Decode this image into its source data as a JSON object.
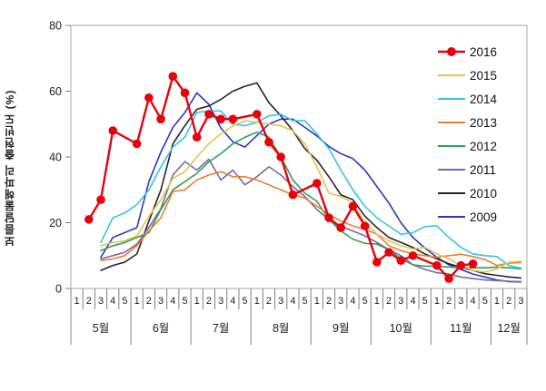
{
  "y_axis_label": "보름달물해파리 출현빈도 (%)",
  "chart_data": {
    "type": "line",
    "title": "",
    "ylabel": "보름달물해파리 출현빈도 (%)",
    "xlabel": "",
    "ylim": [
      0,
      80
    ],
    "yticks": [
      0,
      20,
      40,
      60,
      80
    ],
    "grid": false,
    "legend_position": "top-right-inside",
    "months": [
      {
        "label": "5월",
        "weeks": [
          "1",
          "2",
          "3",
          "4",
          "5"
        ]
      },
      {
        "label": "6월",
        "weeks": [
          "1",
          "2",
          "3",
          "4",
          "5"
        ]
      },
      {
        "label": "7월",
        "weeks": [
          "1",
          "2",
          "3",
          "4",
          "5"
        ]
      },
      {
        "label": "8월",
        "weeks": [
          "1",
          "2",
          "3",
          "4",
          "5"
        ]
      },
      {
        "label": "9월",
        "weeks": [
          "1",
          "2",
          "3",
          "4",
          "5"
        ]
      },
      {
        "label": "10월",
        "weeks": [
          "1",
          "2",
          "3",
          "4",
          "5"
        ]
      },
      {
        "label": "11월",
        "weeks": [
          "1",
          "2",
          "3",
          "4",
          "5"
        ]
      },
      {
        "label": "12월",
        "weeks": [
          "1",
          "2",
          "3"
        ]
      }
    ],
    "series": [
      {
        "name": "2016",
        "color": "#e8000b",
        "marker": "circle",
        "line_width": 2.4,
        "values": [
          null,
          21,
          27,
          48,
          null,
          44,
          58,
          51.5,
          64.5,
          59.5,
          46,
          53,
          51.5,
          51.5,
          null,
          53,
          44.5,
          40,
          28.5,
          null,
          32,
          21.5,
          18.5,
          25,
          19,
          8,
          11,
          8.5,
          10,
          null,
          7,
          3,
          7,
          7.5,
          null,
          null,
          null,
          null
        ]
      },
      {
        "name": "2015",
        "color": "#e7c24d",
        "marker": "none",
        "line_width": 1.6,
        "values": [
          null,
          null,
          13,
          14,
          14.5,
          16,
          22,
          27,
          33.5,
          35.5,
          40,
          44,
          47,
          49.5,
          51,
          50.5,
          50,
          49.5,
          48,
          44,
          37,
          29,
          28,
          26,
          20,
          16.5,
          14.5,
          13,
          12,
          12.5,
          10.5,
          9,
          7,
          5.5,
          5,
          6,
          8,
          8.3
        ]
      },
      {
        "name": "2014",
        "color": "#35c4e3",
        "marker": "none",
        "line_width": 1.6,
        "values": [
          null,
          null,
          14,
          21.5,
          23,
          25.5,
          30,
          37,
          43,
          46,
          53.5,
          54,
          54,
          50,
          49.5,
          50.5,
          52.5,
          53,
          51,
          51,
          47,
          42.5,
          36,
          30,
          25,
          21.5,
          19,
          16.5,
          17,
          18.8,
          19,
          15.5,
          12.5,
          10.5,
          10,
          9.7,
          7,
          6.2
        ]
      },
      {
        "name": "2013",
        "color": "#ed7d31",
        "marker": "none",
        "line_width": 1.6,
        "values": [
          null,
          null,
          8.5,
          9,
          10,
          13,
          17.5,
          21.5,
          29.5,
          30,
          33,
          34.5,
          35.5,
          34,
          34,
          33,
          31.5,
          30,
          28.5,
          27.5,
          25,
          22.5,
          20.5,
          19,
          18,
          16.5,
          13,
          11.5,
          10.5,
          10,
          9.5,
          10,
          10.4,
          9.7,
          8.8,
          7,
          7.7,
          7.9
        ]
      },
      {
        "name": "2012",
        "color": "#2ca05a",
        "marker": "none",
        "line_width": 1.6,
        "values": [
          null,
          null,
          11.5,
          13,
          14,
          15.5,
          17,
          24,
          30,
          32.5,
          35,
          38.5,
          41,
          44,
          46,
          47.5,
          46,
          40,
          33,
          29,
          26.5,
          21,
          17.5,
          15,
          13.7,
          13.5,
          11.8,
          9,
          7.2,
          6.8,
          6.8,
          6.5,
          6.3,
          6.3,
          6.3,
          6.5,
          6.3,
          6
        ]
      },
      {
        "name": "2011",
        "color": "#8064a2",
        "marker": "none",
        "line_width": 1.6,
        "values": [
          null,
          null,
          9,
          10,
          11,
          13.5,
          18.6,
          24.3,
          34.5,
          38.6,
          36,
          39.3,
          33,
          36,
          31.5,
          34,
          37,
          34.5,
          31,
          28,
          24,
          21,
          19,
          17.5,
          16,
          14,
          11.8,
          10,
          7.2,
          5.8,
          4.8,
          4.4,
          3.5,
          3,
          2.6,
          2.4,
          2.2,
          2.1
        ]
      },
      {
        "name": "2010",
        "color": "#262626",
        "marker": "none",
        "line_width": 1.6,
        "values": [
          null,
          null,
          5.5,
          7,
          8,
          10.5,
          20.5,
          30,
          44,
          49.5,
          54.5,
          55.5,
          57.5,
          60,
          61.5,
          62.5,
          56.5,
          52.5,
          48,
          42.5,
          39,
          34,
          28.5,
          27,
          22,
          18.5,
          15.5,
          14,
          12.5,
          10.5,
          9,
          7.5,
          6.5,
          5.5,
          4.5,
          4,
          3.5,
          3.2
        ]
      },
      {
        "name": "2009",
        "color": "#2b35cc",
        "marker": "none",
        "line_width": 1.6,
        "values": [
          null,
          null,
          9.5,
          15.5,
          17,
          18.5,
          32.5,
          41.5,
          49,
          53.5,
          59.5,
          56,
          48.8,
          44.6,
          43,
          46.5,
          50,
          51.5,
          51.5,
          49,
          46.4,
          43.2,
          41,
          39.5,
          36,
          31,
          26,
          20,
          15.5,
          12.3,
          9.5,
          7.2,
          5.8,
          4.4,
          3.5,
          2.6,
          2.1,
          2
        ]
      }
    ]
  }
}
